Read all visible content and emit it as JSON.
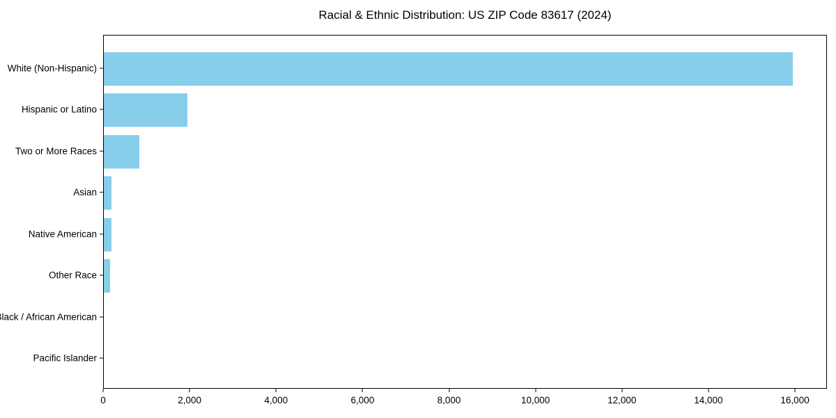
{
  "colors": {
    "bar": "#87CEEB",
    "axis": "#000000",
    "text": "#000000",
    "background": "#FFFFFF"
  },
  "chart_data": {
    "type": "bar",
    "orientation": "horizontal",
    "title": "Racial & Ethnic Distribution: US ZIP Code 83617 (2024)",
    "categories": [
      "White (Non-Hispanic)",
      "Hispanic or Latino",
      "Two or More Races",
      "Asian",
      "Native American",
      "Other Race",
      "Black / African American",
      "Pacific Islander"
    ],
    "values": [
      15930,
      1930,
      820,
      175,
      185,
      140,
      0,
      0
    ],
    "bar_color": "#87CEEB",
    "xlabel": "",
    "ylabel": "",
    "xlim": [
      0,
      16740
    ],
    "xticks": [
      0,
      2000,
      4000,
      6000,
      8000,
      10000,
      12000,
      14000,
      16000
    ],
    "xtick_labels": [
      "0",
      "2,000",
      "4,000",
      "6,000",
      "8,000",
      "10,000",
      "12,000",
      "14,000",
      "16,000"
    ],
    "grid": false,
    "legend": "none"
  }
}
